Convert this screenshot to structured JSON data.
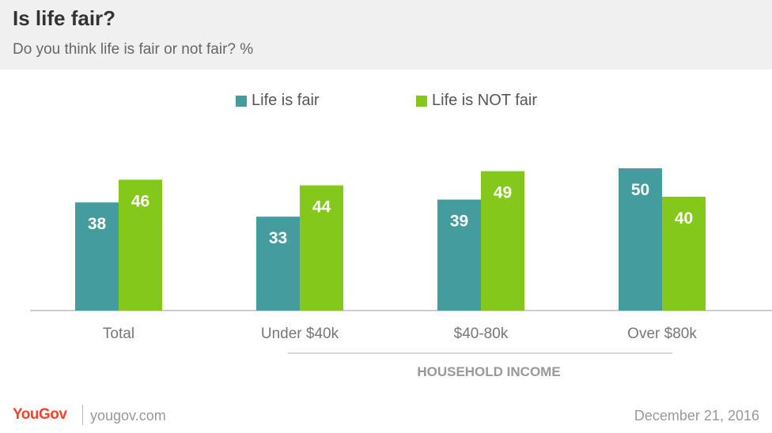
{
  "header": {
    "title": "Is life fair?",
    "subtitle": "Do you think life is fair or not fair? %"
  },
  "legend": [
    {
      "label": "Life is fair",
      "color": "#459c9e"
    },
    {
      "label": "Life is NOT fair",
      "color": "#84c81c"
    }
  ],
  "chart_data": {
    "type": "bar",
    "categories": [
      "Total",
      "Under $40k",
      "$40-80k",
      "Over $80k"
    ],
    "series": [
      {
        "name": "Life is fair",
        "values": [
          38,
          33,
          39,
          50
        ],
        "color": "#459c9e"
      },
      {
        "name": "Life is NOT fair",
        "values": [
          46,
          44,
          49,
          40
        ],
        "color": "#84c81c"
      }
    ],
    "group_label": "HOUSEHOLD INCOME",
    "ylim": [
      0,
      60
    ],
    "grid": false,
    "legend_position": "top"
  },
  "footer": {
    "brand": "YouGov",
    "url": "yougov.com",
    "date": "December 21, 2016"
  }
}
